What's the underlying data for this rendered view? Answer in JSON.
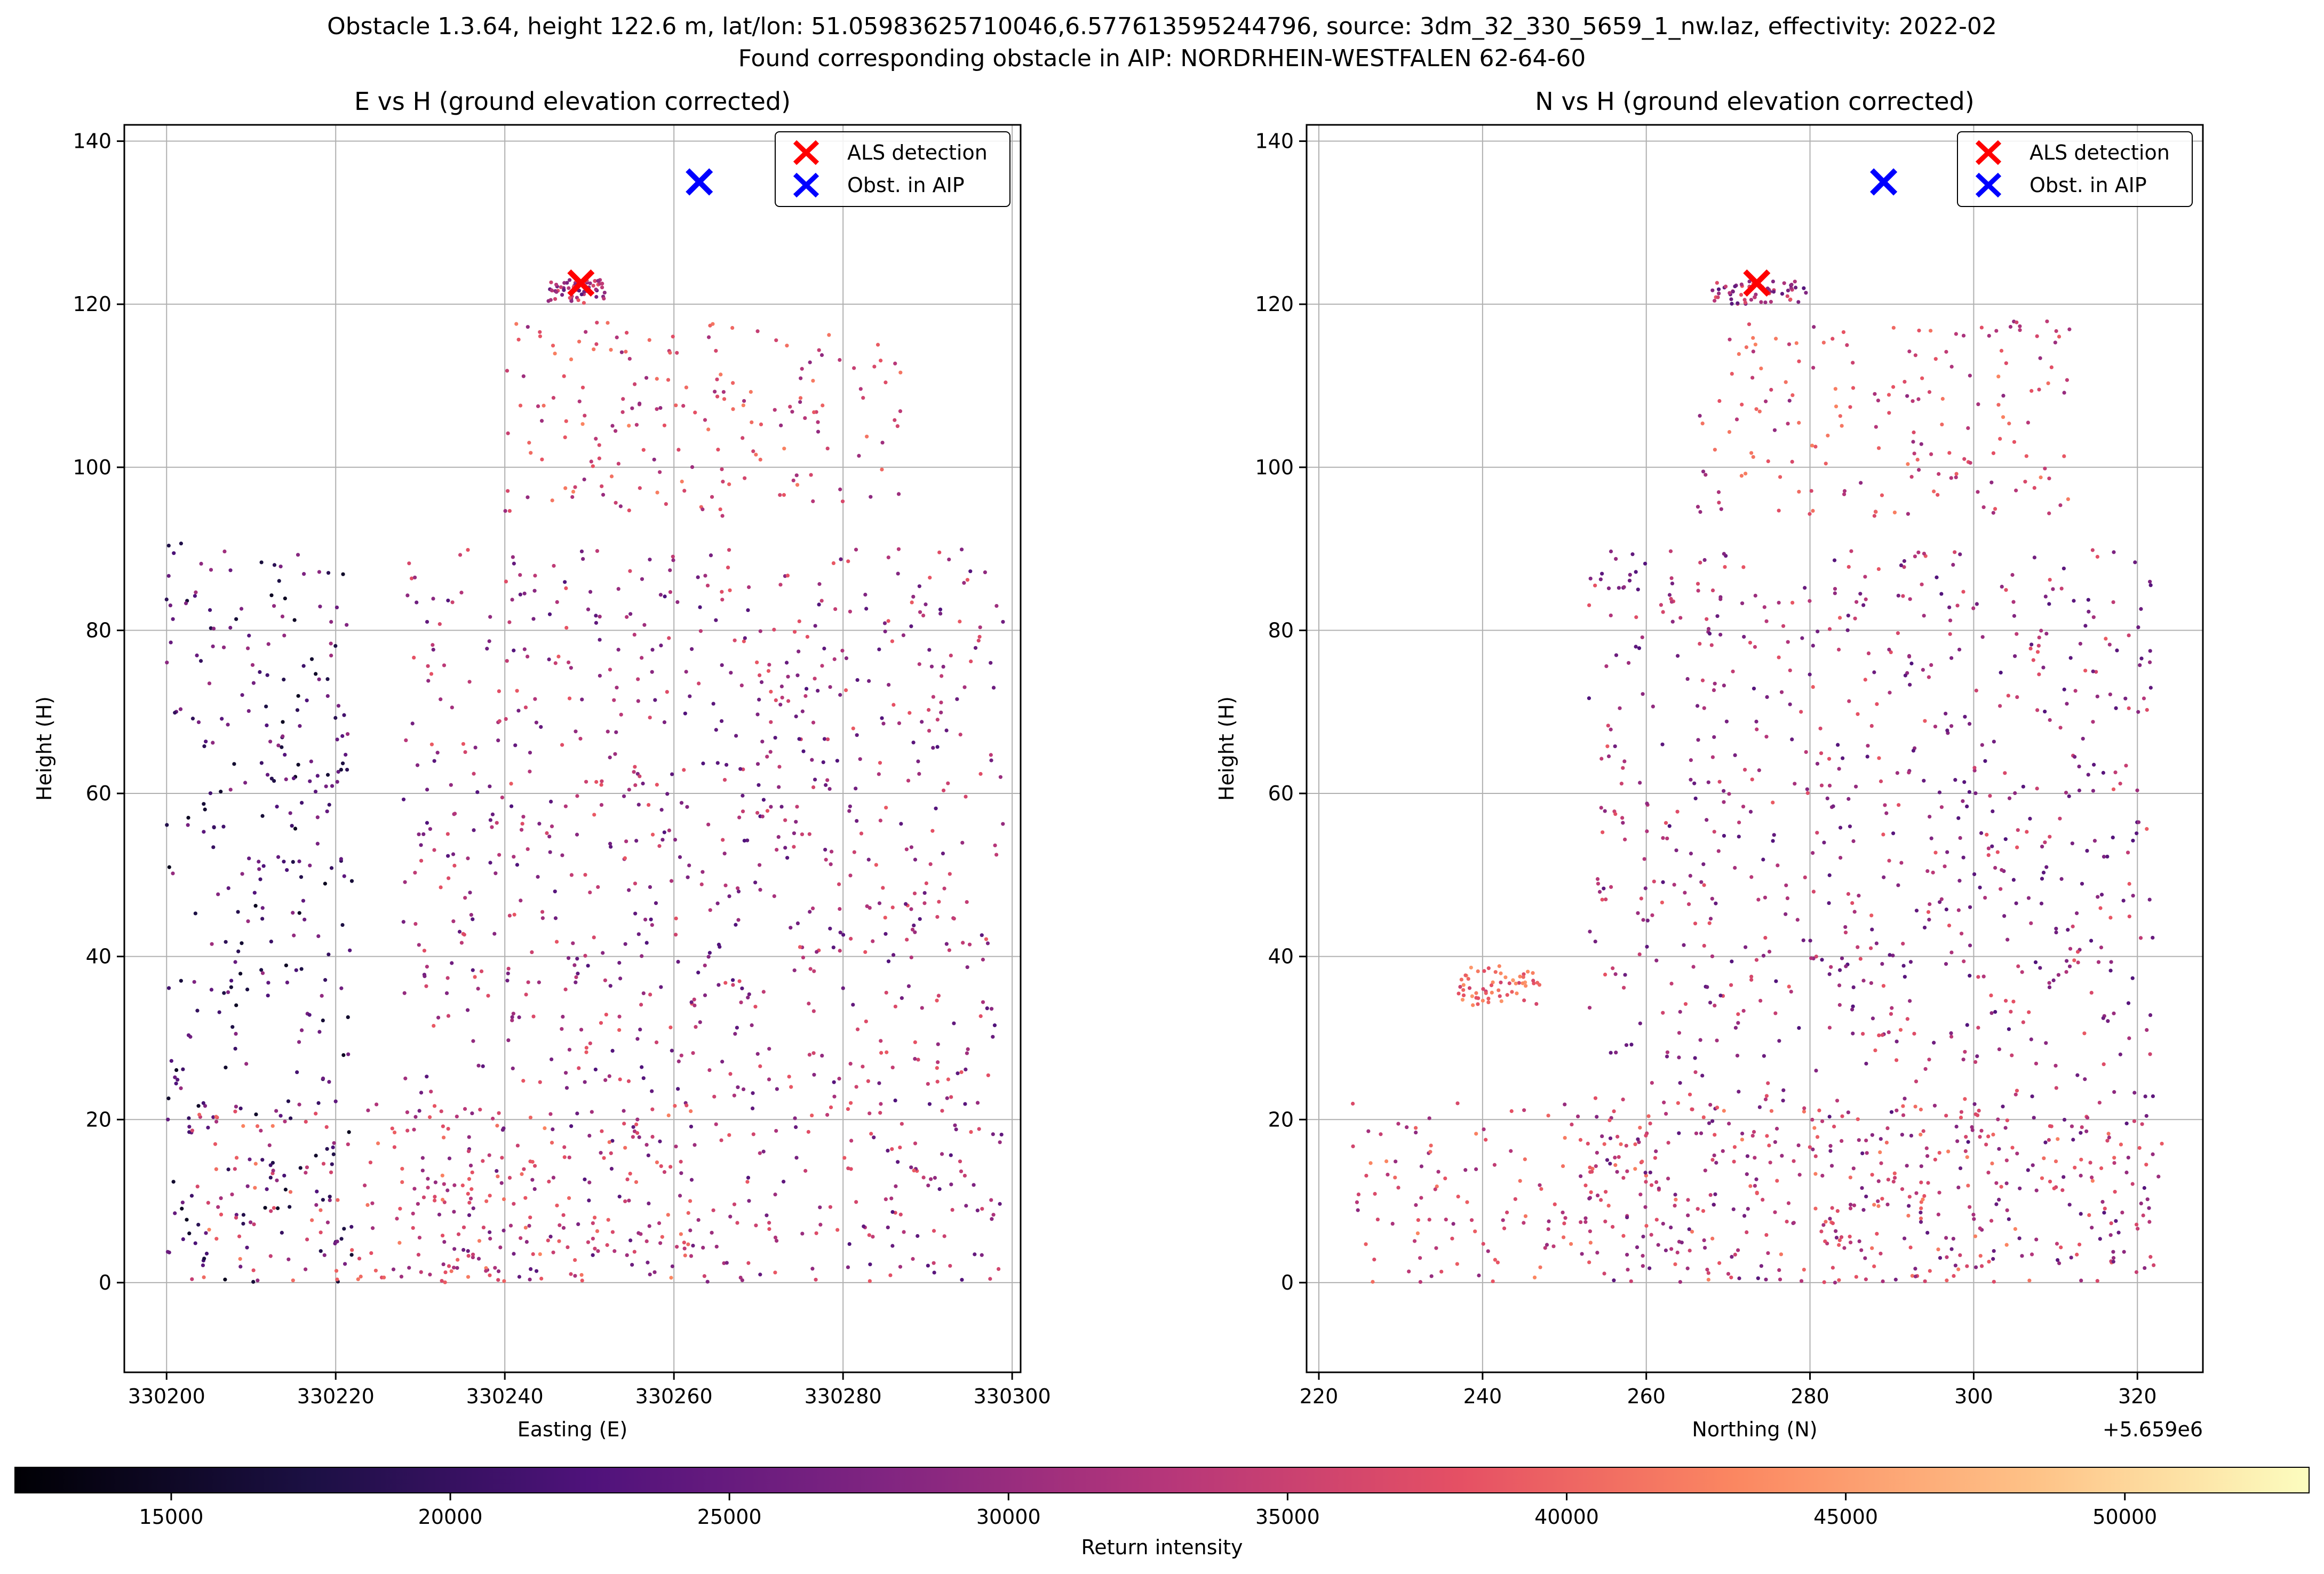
{
  "suptitle_line1": "Obstacle 1.3.64, height 122.6 m, lat/lon: 51.05983625710046,6.577613595244796, source: 3dm_32_330_5659_1_nw.laz, effectivity: 2022-02",
  "suptitle_line2": "Found corresponding obstacle in AIP: NORDRHEIN-WESTFALEN 62-64-60",
  "colors": {
    "als": "#ff0000",
    "aip": "#0000ff",
    "grid": "#b0b0b0",
    "colormap": "magma"
  },
  "chart_data": [
    {
      "type": "scatter",
      "title": "E vs H (ground elevation corrected)",
      "xlabel": "Easting (E)",
      "ylabel": "Height (H)",
      "xlim": [
        330195,
        330301
      ],
      "ylim": [
        -11,
        142
      ],
      "xticks": [
        330200,
        330220,
        330240,
        330260,
        330280,
        330300
      ],
      "yticks": [
        0,
        20,
        40,
        60,
        80,
        100,
        120,
        140
      ],
      "grid": true,
      "legend_position": "top-right",
      "legend": [
        {
          "label": "ALS detection",
          "marker": "x",
          "color": "#ff0000"
        },
        {
          "label": "Obst. in AIP",
          "marker": "x",
          "color": "#0000ff"
        }
      ],
      "als_detection": {
        "x": 330249,
        "y": 122.6
      },
      "obst_in_aip": {
        "x": 330263,
        "y": 135
      },
      "point_cloud_regions": [
        {
          "x": [
            330200,
            330222
          ],
          "y": [
            0,
            91
          ],
          "intensity": "low-mid"
        },
        {
          "x": [
            330228,
            330299
          ],
          "y": [
            0,
            90
          ],
          "intensity": "mid"
        },
        {
          "x": [
            330203,
            330262
          ],
          "y": [
            0,
            22
          ],
          "intensity": "mid-high"
        },
        {
          "x": [
            330240,
            330287
          ],
          "y": [
            94,
            118
          ],
          "intensity": "mid-high"
        },
        {
          "x": [
            330245,
            330252
          ],
          "y": [
            120,
            123
          ],
          "intensity": "mid"
        }
      ]
    },
    {
      "type": "scatter",
      "title": "N vs H (ground elevation corrected)",
      "xlabel": "Northing (N)",
      "ylabel": "Height (H)",
      "offset_label": "+5.659e6",
      "xlim": [
        218.5,
        328
      ],
      "ylim": [
        -11,
        142
      ],
      "xticks": [
        220,
        240,
        260,
        280,
        300,
        320
      ],
      "yticks": [
        0,
        20,
        40,
        60,
        80,
        100,
        120,
        140
      ],
      "grid": true,
      "legend_position": "top-right",
      "legend": [
        {
          "label": "ALS detection",
          "marker": "x",
          "color": "#ff0000"
        },
        {
          "label": "Obst. in AIP",
          "marker": "x",
          "color": "#0000ff"
        }
      ],
      "als_detection": {
        "x": 273.5,
        "y": 122.6
      },
      "obst_in_aip": {
        "x": 289,
        "y": 135
      },
      "point_cloud_regions": [
        {
          "x": [
            224,
            323
          ],
          "y": [
            0,
            22
          ],
          "intensity": "mid-high"
        },
        {
          "x": [
            253,
            322
          ],
          "y": [
            0,
            90
          ],
          "intensity": "mid"
        },
        {
          "x": [
            237,
            247
          ],
          "y": [
            34,
            39
          ],
          "intensity": "high"
        },
        {
          "x": [
            266,
            312
          ],
          "y": [
            94,
            118
          ],
          "intensity": "mid-high"
        },
        {
          "x": [
            268,
            280
          ],
          "y": [
            120,
            123
          ],
          "intensity": "mid"
        }
      ]
    }
  ],
  "colorbar": {
    "label": "Return intensity",
    "range": [
      12200,
      53300
    ],
    "ticks": [
      15000,
      20000,
      25000,
      30000,
      35000,
      40000,
      45000,
      50000
    ],
    "colormap": "magma"
  }
}
